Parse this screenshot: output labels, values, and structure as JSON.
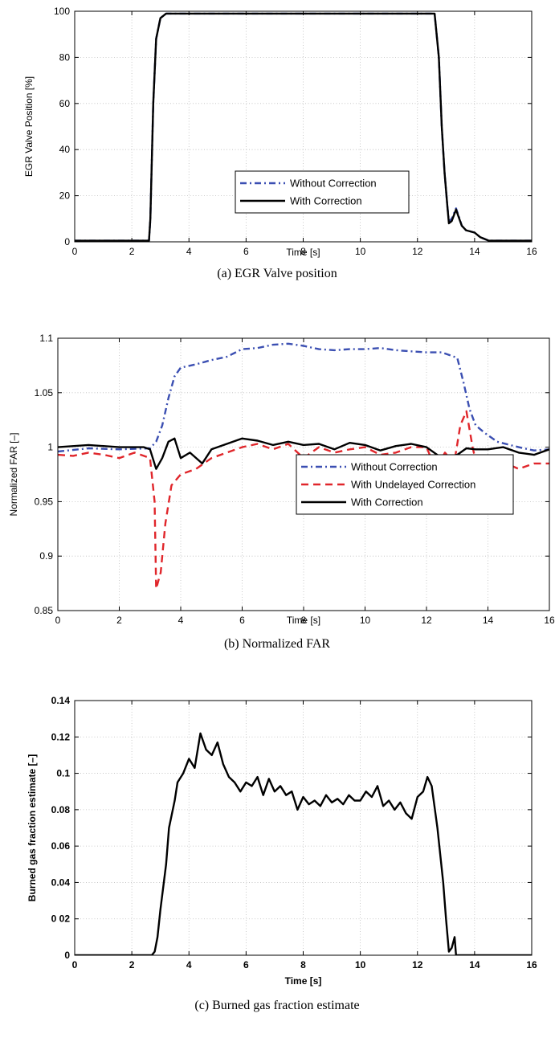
{
  "chart_data": [
    {
      "type": "line",
      "caption": "(a)  EGR Valve position",
      "xlabel": "Time [s]",
      "ylabel": "EGR Valve Position [%]",
      "xlim": [
        0,
        16
      ],
      "ylim": [
        0,
        100
      ],
      "xticks": [
        "0",
        "2",
        "4",
        "6",
        "8",
        "10",
        "12",
        "14",
        "16"
      ],
      "yticks": [
        "0",
        "20",
        "40",
        "60",
        "80",
        "100"
      ],
      "grid": true,
      "legend_position": "center-right",
      "series": [
        {
          "name": "Without Correction",
          "color": "#3b4fb2",
          "style": "dashdot",
          "points": [
            [
              0,
              0.5
            ],
            [
              2.6,
              0.5
            ],
            [
              2.65,
              10
            ],
            [
              2.75,
              60
            ],
            [
              2.85,
              88
            ],
            [
              3.0,
              97
            ],
            [
              3.2,
              99
            ],
            [
              12.6,
              99
            ],
            [
              12.75,
              80
            ],
            [
              12.85,
              50
            ],
            [
              12.95,
              30
            ],
            [
              13.05,
              15
            ],
            [
              13.1,
              9
            ],
            [
              13.2,
              10
            ],
            [
              13.35,
              14.5
            ],
            [
              13.45,
              11
            ],
            [
              13.55,
              7
            ],
            [
              13.7,
              5
            ],
            [
              14.0,
              4
            ],
            [
              14.2,
              2
            ],
            [
              14.5,
              0.5
            ],
            [
              16,
              0.5
            ]
          ]
        },
        {
          "name": "With Correction",
          "color": "#000000",
          "style": "solid",
          "points": [
            [
              0,
              0.5
            ],
            [
              2.6,
              0.5
            ],
            [
              2.65,
              10
            ],
            [
              2.75,
              60
            ],
            [
              2.85,
              88
            ],
            [
              3.0,
              97
            ],
            [
              3.2,
              99
            ],
            [
              12.6,
              99
            ],
            [
              12.75,
              80
            ],
            [
              12.85,
              50
            ],
            [
              12.95,
              30
            ],
            [
              13.05,
              15
            ],
            [
              13.1,
              8
            ],
            [
              13.2,
              9
            ],
            [
              13.35,
              14
            ],
            [
              13.45,
              10.5
            ],
            [
              13.55,
              7
            ],
            [
              13.7,
              5
            ],
            [
              14.0,
              4
            ],
            [
              14.2,
              2
            ],
            [
              14.5,
              0.5
            ],
            [
              16,
              0.5
            ]
          ]
        }
      ]
    },
    {
      "type": "line",
      "caption": "(b)  Normalized FAR",
      "xlabel": "Time [s]",
      "ylabel": "Normalized FAR [–]",
      "xlim": [
        0,
        16
      ],
      "ylim": [
        0.85,
        1.1
      ],
      "xticks": [
        "0",
        "2",
        "4",
        "6",
        "8",
        "10",
        "12",
        "14",
        "16"
      ],
      "yticks": [
        "0.85",
        "0.9",
        "0.95",
        "1",
        "1.05",
        "1.1"
      ],
      "grid": true,
      "legend_position": "lower-right",
      "series": [
        {
          "name": "Without Correction",
          "color": "#3b4fb2",
          "style": "dashdot",
          "points": [
            [
              0,
              0.996
            ],
            [
              1,
              0.999
            ],
            [
              2,
              0.998
            ],
            [
              3.0,
              0.999
            ],
            [
              3.2,
              1.005
            ],
            [
              3.4,
              1.02
            ],
            [
              3.6,
              1.045
            ],
            [
              3.8,
              1.065
            ],
            [
              4.0,
              1.073
            ],
            [
              4.5,
              1.076
            ],
            [
              5,
              1.08
            ],
            [
              5.5,
              1.083
            ],
            [
              6,
              1.09
            ],
            [
              6.5,
              1.091
            ],
            [
              7,
              1.094
            ],
            [
              7.5,
              1.095
            ],
            [
              8,
              1.093
            ],
            [
              8.5,
              1.09
            ],
            [
              9,
              1.089
            ],
            [
              9.5,
              1.09
            ],
            [
              10,
              1.09
            ],
            [
              10.5,
              1.091
            ],
            [
              11,
              1.089
            ],
            [
              11.5,
              1.088
            ],
            [
              12,
              1.087
            ],
            [
              12.5,
              1.087
            ],
            [
              13.0,
              1.082
            ],
            [
              13.2,
              1.06
            ],
            [
              13.4,
              1.035
            ],
            [
              13.6,
              1.02
            ],
            [
              13.9,
              1.013
            ],
            [
              14.3,
              1.005
            ],
            [
              15,
              1.0
            ],
            [
              15.5,
              0.997
            ],
            [
              16,
              0.998
            ]
          ]
        },
        {
          "name": "With Undelayed Correction",
          "color": "#e0262b",
          "style": "dashed",
          "points": [
            [
              0,
              0.993
            ],
            [
              0.5,
              0.992
            ],
            [
              1,
              0.995
            ],
            [
              1.5,
              0.993
            ],
            [
              2,
              0.99
            ],
            [
              2.5,
              0.995
            ],
            [
              3.0,
              0.99
            ],
            [
              3.15,
              0.95
            ],
            [
              3.2,
              0.87
            ],
            [
              3.35,
              0.885
            ],
            [
              3.5,
              0.93
            ],
            [
              3.7,
              0.965
            ],
            [
              4.0,
              0.975
            ],
            [
              4.5,
              0.98
            ],
            [
              5,
              0.99
            ],
            [
              5.5,
              0.995
            ],
            [
              6,
              1.0
            ],
            [
              6.5,
              1.003
            ],
            [
              7,
              0.998
            ],
            [
              7.5,
              1.003
            ],
            [
              8,
              0.99
            ],
            [
              8.5,
              1.0
            ],
            [
              9,
              0.995
            ],
            [
              9.5,
              0.998
            ],
            [
              10,
              1.0
            ],
            [
              10.5,
              0.993
            ],
            [
              11,
              0.995
            ],
            [
              11.5,
              1.0
            ],
            [
              12,
              1.0
            ],
            [
              12.3,
              0.98
            ],
            [
              12.6,
              0.995
            ],
            [
              12.9,
              0.985
            ],
            [
              13.1,
              1.02
            ],
            [
              13.3,
              1.033
            ],
            [
              13.5,
              1.0
            ],
            [
              13.7,
              0.975
            ],
            [
              13.9,
              0.952
            ],
            [
              14.1,
              0.985
            ],
            [
              14.3,
              0.97
            ],
            [
              14.6,
              0.985
            ],
            [
              15,
              0.98
            ],
            [
              15.5,
              0.985
            ],
            [
              16,
              0.985
            ]
          ]
        },
        {
          "name": "With Correction",
          "color": "#000000",
          "style": "solid",
          "points": [
            [
              0,
              1.0
            ],
            [
              1,
              1.002
            ],
            [
              2,
              1.0
            ],
            [
              2.8,
              1.0
            ],
            [
              3.0,
              0.998
            ],
            [
              3.2,
              0.98
            ],
            [
              3.4,
              0.99
            ],
            [
              3.6,
              1.005
            ],
            [
              3.8,
              1.008
            ],
            [
              4.0,
              0.99
            ],
            [
              4.3,
              0.995
            ],
            [
              4.7,
              0.985
            ],
            [
              5.0,
              0.998
            ],
            [
              5.5,
              1.003
            ],
            [
              6,
              1.008
            ],
            [
              6.5,
              1.006
            ],
            [
              7,
              1.002
            ],
            [
              7.5,
              1.005
            ],
            [
              8,
              1.002
            ],
            [
              8.5,
              1.003
            ],
            [
              9,
              0.998
            ],
            [
              9.5,
              1.004
            ],
            [
              10,
              1.002
            ],
            [
              10.5,
              0.997
            ],
            [
              11,
              1.001
            ],
            [
              11.5,
              1.003
            ],
            [
              12,
              1.0
            ],
            [
              12.5,
              0.99
            ],
            [
              13,
              0.993
            ],
            [
              13.3,
              0.999
            ],
            [
              13.6,
              0.998
            ],
            [
              14,
              0.998
            ],
            [
              14.5,
              1.0
            ],
            [
              15,
              0.995
            ],
            [
              15.5,
              0.993
            ],
            [
              16,
              0.998
            ]
          ]
        }
      ]
    },
    {
      "type": "line",
      "caption": "(c)  Burned gas fraction estimate",
      "xlabel": "Time [s]",
      "ylabel": "Burned gas fraction estimate [–]",
      "xlim": [
        0,
        16
      ],
      "ylim": [
        0,
        0.14
      ],
      "xticks": [
        "0",
        "2",
        "4",
        "6",
        "8",
        "10",
        "12",
        "14",
        "16"
      ],
      "yticks": [
        "0",
        "0 02",
        "0.04",
        "0.06",
        "0.08",
        "0.1",
        "0.12",
        "0.14"
      ],
      "grid": true,
      "series": [
        {
          "name": "",
          "color": "#000000",
          "style": "solid",
          "points": [
            [
              0,
              0
            ],
            [
              2.7,
              0
            ],
            [
              2.8,
              0.002
            ],
            [
              2.9,
              0.01
            ],
            [
              3.0,
              0.025
            ],
            [
              3.2,
              0.05
            ],
            [
              3.3,
              0.07
            ],
            [
              3.5,
              0.085
            ],
            [
              3.6,
              0.095
            ],
            [
              3.8,
              0.1
            ],
            [
              4.0,
              0.108
            ],
            [
              4.2,
              0.103
            ],
            [
              4.4,
              0.122
            ],
            [
              4.6,
              0.113
            ],
            [
              4.8,
              0.11
            ],
            [
              5.0,
              0.117
            ],
            [
              5.2,
              0.105
            ],
            [
              5.4,
              0.098
            ],
            [
              5.6,
              0.095
            ],
            [
              5.8,
              0.09
            ],
            [
              6.0,
              0.095
            ],
            [
              6.2,
              0.093
            ],
            [
              6.4,
              0.098
            ],
            [
              6.6,
              0.088
            ],
            [
              6.8,
              0.097
            ],
            [
              7.0,
              0.09
            ],
            [
              7.2,
              0.093
            ],
            [
              7.4,
              0.088
            ],
            [
              7.6,
              0.09
            ],
            [
              7.8,
              0.08
            ],
            [
              8.0,
              0.087
            ],
            [
              8.2,
              0.083
            ],
            [
              8.4,
              0.085
            ],
            [
              8.6,
              0.082
            ],
            [
              8.8,
              0.088
            ],
            [
              9.0,
              0.084
            ],
            [
              9.2,
              0.086
            ],
            [
              9.4,
              0.083
            ],
            [
              9.6,
              0.088
            ],
            [
              9.8,
              0.085
            ],
            [
              10.0,
              0.085
            ],
            [
              10.2,
              0.09
            ],
            [
              10.4,
              0.087
            ],
            [
              10.6,
              0.093
            ],
            [
              10.8,
              0.082
            ],
            [
              11.0,
              0.085
            ],
            [
              11.2,
              0.08
            ],
            [
              11.4,
              0.084
            ],
            [
              11.6,
              0.078
            ],
            [
              11.8,
              0.075
            ],
            [
              12.0,
              0.087
            ],
            [
              12.2,
              0.09
            ],
            [
              12.35,
              0.098
            ],
            [
              12.5,
              0.093
            ],
            [
              12.7,
              0.07
            ],
            [
              12.9,
              0.04
            ],
            [
              13.0,
              0.02
            ],
            [
              13.1,
              0.002
            ],
            [
              13.2,
              0.004
            ],
            [
              13.3,
              0.01
            ],
            [
              13.35,
              0
            ],
            [
              16,
              0
            ]
          ]
        }
      ]
    }
  ]
}
